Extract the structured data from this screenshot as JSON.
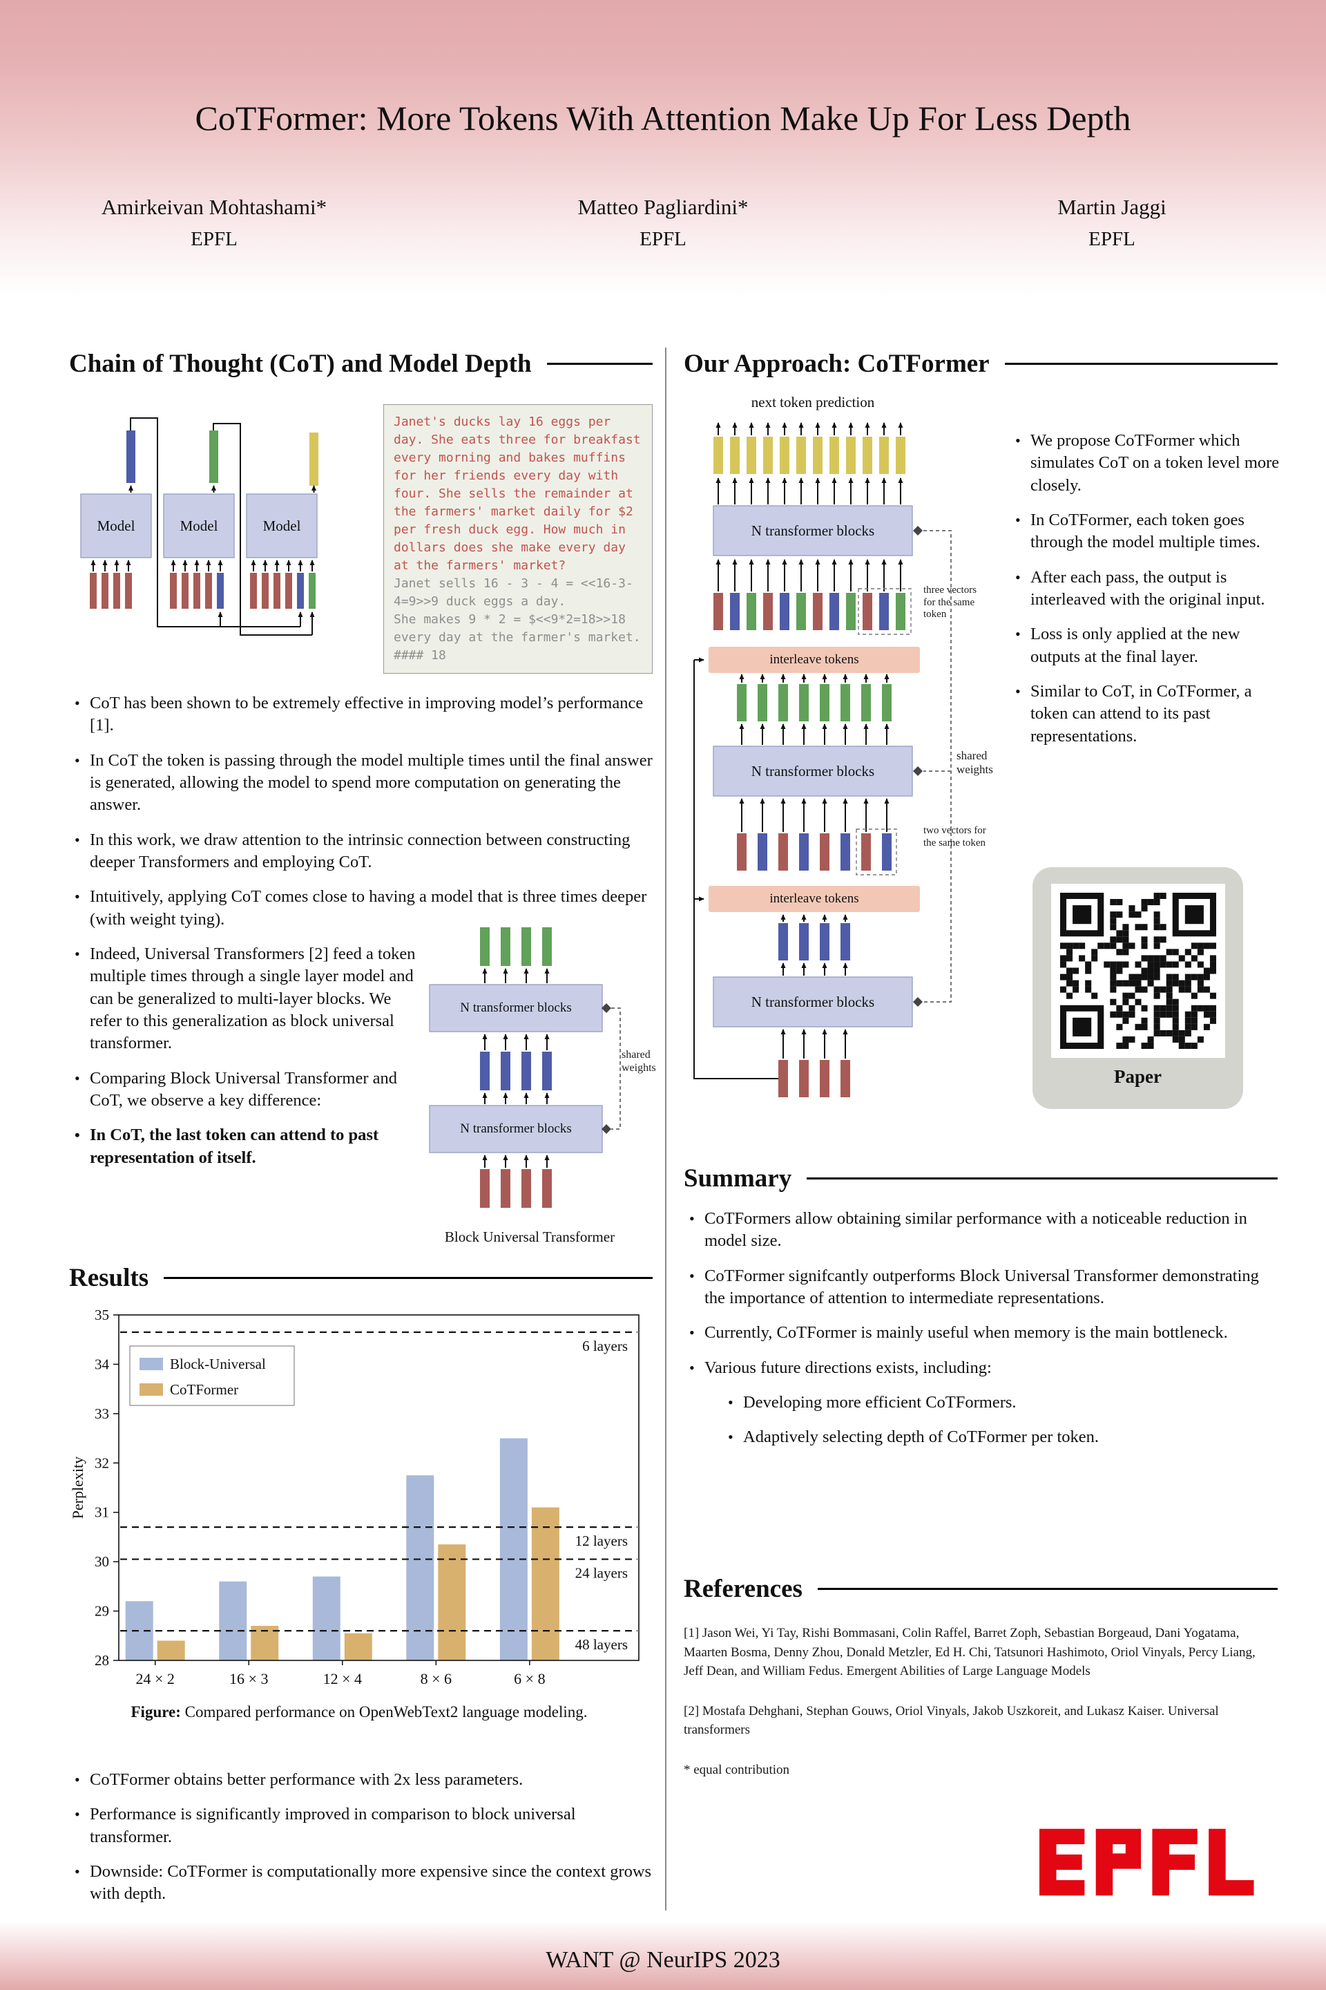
{
  "header": {
    "title": "CoTFormer: More Tokens With Attention Make Up For Less Depth",
    "authors": [
      {
        "name": "Amirkeivan Mohtashami*",
        "affiliation": "EPFL"
      },
      {
        "name": "Matteo Pagliardini*",
        "affiliation": "EPFL"
      },
      {
        "name": "Martin Jaggi",
        "affiliation": "EPFL"
      }
    ]
  },
  "left": {
    "cot_section": {
      "heading": "Chain of Thought (CoT) and Model Depth",
      "diagram": {
        "model_label": "Model"
      },
      "example": {
        "question": "Janet's ducks lay 16 eggs per day. She eats three for breakfast every morning and bakes muffins for her friends every day with four. She sells the remainder at the farmers' market daily for $2 per fresh duck egg. How much in dollars does she make every day at the farmers' market?",
        "cot_line1": "Janet sells 16 - 3 - 4 = <<16-3-4=9>>9 duck eggs a day.",
        "cot_line2": "She makes 9 * 2 = $<<9*2=18>>18 every day at the farmer's market.",
        "answer": "#### 18"
      },
      "bullets": [
        "CoT has been shown to be extremely effective in improving model’s performance [1].",
        "In CoT the token is passing through the model multiple times until the final answer is generated, allowing the model to spend more computation on generating the answer.",
        "In this work, we draw attention to the intrinsic connection between constructing deeper Transformers and employing CoT.",
        "Intuitively, applying CoT comes close to having a model that is three times deeper (with weight tying).",
        "Indeed, Universal Transformers [2] feed a token multiple times through a single layer model and can be generalized to multi-layer blocks. We refer to this generalization as block universal transformer.",
        "Comparing Block Universal Transformer and CoT, we observe a key difference:",
        "In CoT, the last token can attend to past representation of itself."
      ],
      "but_diagram": {
        "block_label": "N transformer blocks",
        "shared_weights": "shared weights",
        "caption": "Block Universal Transformer"
      }
    },
    "results": {
      "heading": "Results",
      "figure_label": "Figure:",
      "figure_caption": "Compared performance on OpenWebText2 language modeling.",
      "bullets": [
        "CoTFormer obtains better performance with 2x less parameters.",
        "Performance is significantly improved in comparison to block universal transformer.",
        "Downside: CoTFormer is computationally more expensive since the context grows with depth."
      ]
    }
  },
  "chart_data": {
    "type": "bar",
    "title": "",
    "ylabel": "Perplexity",
    "xlabel": "",
    "ylim": [
      28,
      35
    ],
    "yticks": [
      28,
      29,
      30,
      31,
      32,
      33,
      34,
      35
    ],
    "categories": [
      "24 × 2",
      "16 × 3",
      "12 × 4",
      "8 × 6",
      "6 × 8"
    ],
    "series": [
      {
        "name": "Block-Universal",
        "color": "#a9b9da",
        "values": [
          29.2,
          29.6,
          29.7,
          31.75,
          32.5
        ]
      },
      {
        "name": "CoTFormer",
        "color": "#d9b16e",
        "values": [
          28.4,
          28.7,
          28.55,
          30.35,
          31.1
        ]
      }
    ],
    "reference_lines": [
      {
        "label": "6 layers",
        "value": 34.65
      },
      {
        "label": "12 layers",
        "value": 30.7
      },
      {
        "label": "24 layers",
        "value": 30.05
      },
      {
        "label": "48 layers",
        "value": 28.6
      }
    ],
    "legend_position": "upper left",
    "grid": false
  },
  "right": {
    "approach": {
      "heading": "Our Approach: CoTFormer",
      "diagram": {
        "top_label": "next token prediction",
        "block_label": "N transformer blocks",
        "interleave_label": "interleave tokens",
        "shared_weights": "shared weights",
        "three_vectors_note": "three vectors for the same token",
        "two_vectors_note": "two vectors for the same token"
      },
      "bullets": [
        "We propose CoTFormer which simulates CoT on a token level more closely.",
        "In CoTFormer, each token goes through the model multiple times.",
        "After each pass, the output is interleaved with the original input.",
        "Loss is only applied at the new outputs at the final layer.",
        "Similar to CoT, in CoTFormer, a token can attend to its past representations."
      ],
      "qr_label": "Paper"
    },
    "summary": {
      "heading": "Summary",
      "bullets": [
        "CoTFormers allow obtaining similar performance with a noticeable reduction in model size.",
        "CoTFormer signifcantly outperforms Block Universal Transformer demonstrating the importance of attention to intermediate representations.",
        "Currently, CoTFormer is mainly useful when memory is the main bottleneck.",
        "Various future directions exists, including:"
      ],
      "sub_bullets": [
        "Developing more efficient CoTFormers.",
        "Adaptively selecting depth of CoTFormer per token."
      ]
    },
    "references": {
      "heading": "References",
      "items": [
        "[1] Jason Wei, Yi Tay, Rishi Bommasani, Colin Raffel, Barret Zoph, Sebastian Borgeaud, Dani Yogatama, Maarten Bosma, Denny Zhou, Donald Metzler, Ed H. Chi, Tatsunori Hashimoto, Oriol Vinyals, Percy Liang, Jeff Dean, and William Fedus. Emergent Abilities of Large Language Models",
        "[2] Mostafa Dehghani, Stephan Gouws, Oriol Vinyals, Jakob Uszkoreit, and Lukasz Kaiser. Universal transformers"
      ],
      "note": "* equal contribution"
    },
    "logo_text": "EPFL"
  },
  "footer": {
    "text": "WANT @ NeurIPS 2023"
  },
  "colors": {
    "token_red": "#a85b56",
    "token_blue": "#4f5ca8",
    "token_green": "#61a159",
    "token_yellow": "#d6c65a",
    "block_fill": "#c9cee6",
    "block_stroke": "#9aa1c6",
    "interleave_fill": "#f3c7b5",
    "header_pink": "#e2a9ab",
    "epfl_red": "#e30613"
  }
}
